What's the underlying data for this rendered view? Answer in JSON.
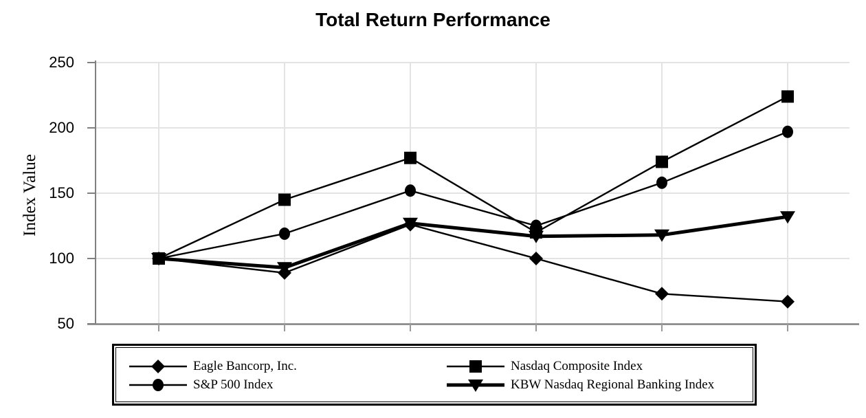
{
  "chart_data": {
    "type": "line",
    "title": "Total Return Performance",
    "ylabel": "Index Value",
    "xlabel": "",
    "ylim": [
      50,
      250
    ],
    "y_ticks": [
      "250",
      "200",
      "150",
      "100",
      "50"
    ],
    "x_tick_labels": [
      "",
      "",
      "",
      "",
      "",
      ""
    ],
    "grid": true,
    "legend_position": "bottom-boxed",
    "colors": {
      "series": "#000000",
      "gridline": "#e3e3e3",
      "axis": "#808080",
      "tick": "#999999",
      "background": "#ffffff"
    },
    "series": [
      {
        "name": "Eagle Bancorp, Inc.",
        "marker": "diamond",
        "line_width": 2.4,
        "values": [
          100,
          89,
          126,
          100,
          73,
          67
        ]
      },
      {
        "name": "S&P 500 Index",
        "marker": "circle",
        "line_width": 2.4,
        "values": [
          100,
          119,
          152,
          125,
          158,
          197
        ]
      },
      {
        "name": "KBW Nasdaq Regional Banking Index",
        "marker": "triangle-down",
        "line_width": 5,
        "values": [
          100,
          93,
          127,
          117,
          118,
          132
        ]
      },
      {
        "name": "Nasdaq Composite Index",
        "marker": "square",
        "line_width": 2.4,
        "values": [
          100,
          145,
          177,
          120,
          174,
          224
        ]
      }
    ],
    "legend_columns": [
      [
        0,
        1
      ],
      [
        3,
        2
      ]
    ]
  }
}
